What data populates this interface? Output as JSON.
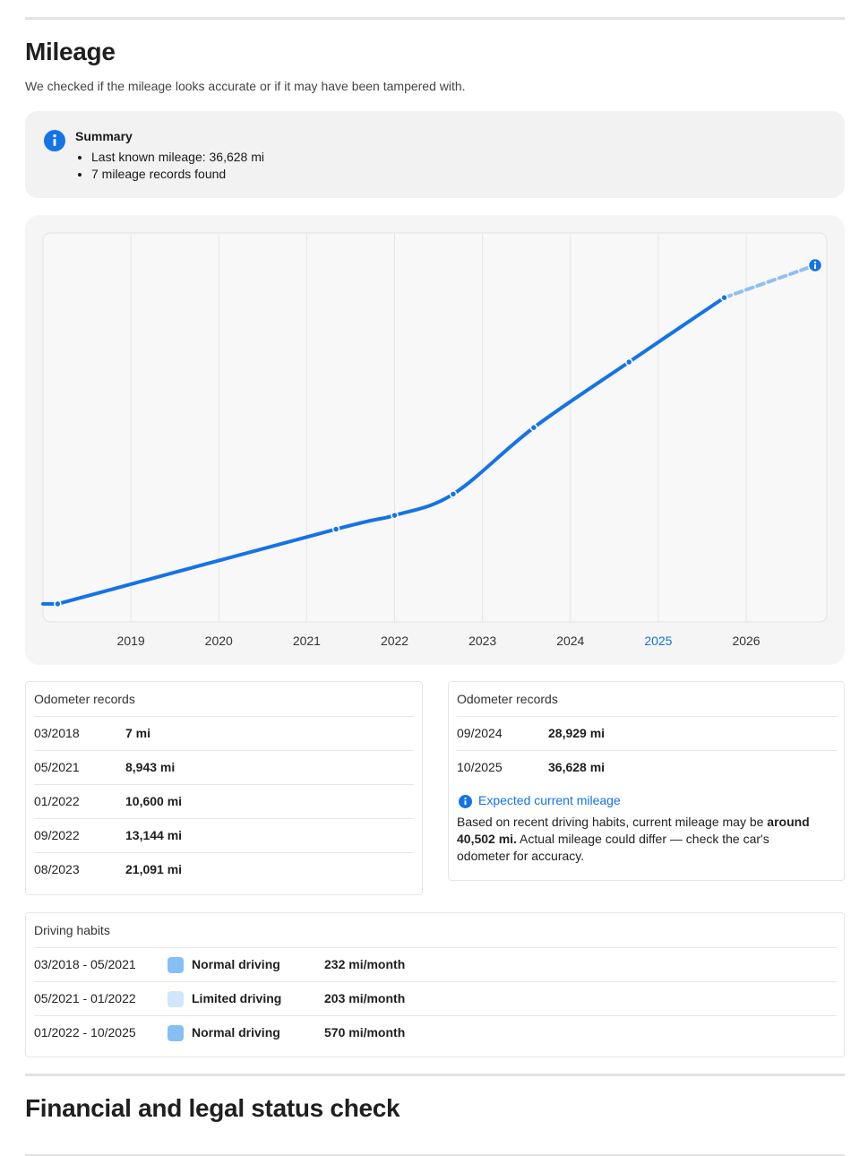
{
  "mileage_section": {
    "title": "Mileage",
    "subtitle": "We checked if the mileage looks accurate or if it may have been tampered with."
  },
  "summary": {
    "title": "Summary",
    "items": [
      "Last known mileage: 36,628 mi",
      "7 mileage records found"
    ]
  },
  "chart_data": {
    "type": "line",
    "x_ticks": [
      "2019",
      "2020",
      "2021",
      "2022",
      "2023",
      "2024",
      "2025",
      "2026"
    ],
    "highlighted_tick": "2025",
    "x_range": [
      "2018-01",
      "2026-12"
    ],
    "series": [
      {
        "points": [
          {
            "date": "03/2018",
            "mileage": 7
          },
          {
            "date": "05/2021",
            "mileage": 8943
          },
          {
            "date": "01/2022",
            "mileage": 10600
          },
          {
            "date": "09/2022",
            "mileage": 13144
          },
          {
            "date": "08/2023",
            "mileage": 21091
          },
          {
            "date": "09/2024",
            "mileage": 28929
          },
          {
            "date": "10/2025",
            "mileage": 36628
          }
        ]
      }
    ],
    "projection": {
      "mileage": 40502
    },
    "grid": true,
    "colors": {
      "line": "#1473e6",
      "projection": "#8fc0f2",
      "grid": "#e6e6e6"
    }
  },
  "odometer_left": {
    "title": "Odometer records",
    "rows": [
      {
        "date": "03/2018",
        "value": "7 mi"
      },
      {
        "date": "05/2021",
        "value": "8,943 mi"
      },
      {
        "date": "01/2022",
        "value": "10,600 mi"
      },
      {
        "date": "09/2022",
        "value": "13,144 mi"
      },
      {
        "date": "08/2023",
        "value": "21,091 mi"
      }
    ]
  },
  "odometer_right": {
    "title": "Odometer records",
    "rows": [
      {
        "date": "09/2024",
        "value": "28,929 mi"
      },
      {
        "date": "10/2025",
        "value": "36,628 mi"
      }
    ],
    "expected_title": "Expected current mileage",
    "expected_body_1": "Based on recent driving habits, current mileage may be ",
    "expected_bold": "around 40,502 mi.",
    "expected_body_2": " Actual mileage could differ — check the car's odometer for accuracy."
  },
  "driving_habits": {
    "title": "Driving habits",
    "rows": [
      {
        "period": "03/2018 - 05/2021",
        "label": "Normal driving",
        "rate": "232 mi/month",
        "color": "#85bff5"
      },
      {
        "period": "05/2021 - 01/2022",
        "label": "Limited driving",
        "rate": "203 mi/month",
        "color": "#cfe6fb"
      },
      {
        "period": "01/2022 - 10/2025",
        "label": "Normal driving",
        "rate": "570 mi/month",
        "color": "#85bff5"
      }
    ]
  },
  "financial_section": {
    "title": "Financial and legal status check"
  }
}
